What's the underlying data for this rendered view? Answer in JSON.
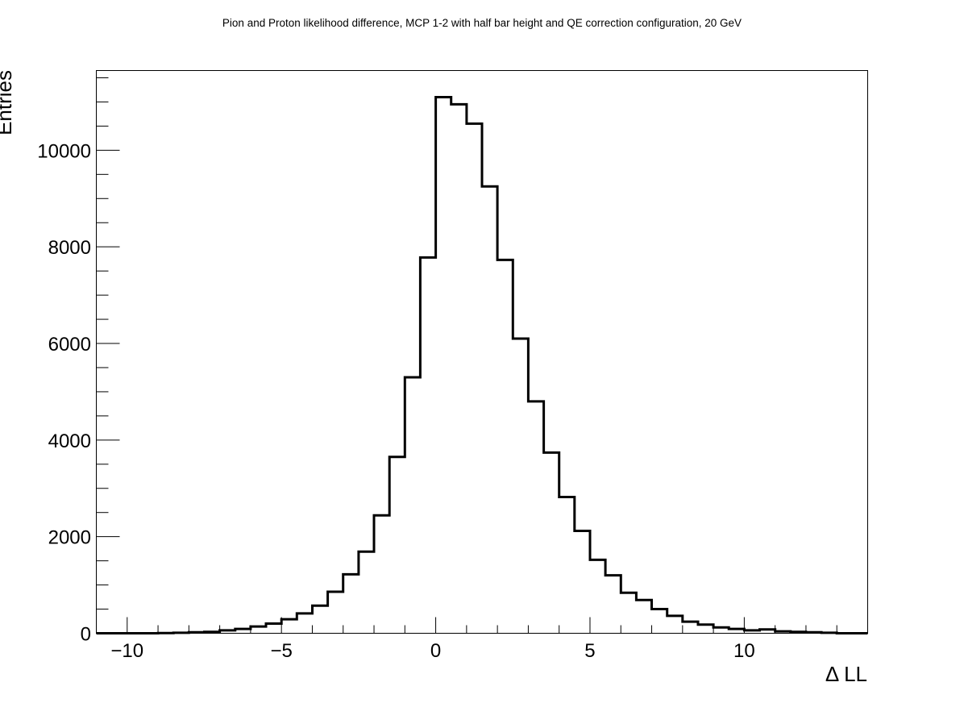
{
  "chart_data": {
    "type": "histogram",
    "title": "Pion and Proton likelihood difference, MCP 1-2 with half bar height and QE correction configuration, 20 GeV",
    "xlabel": "Δ LL",
    "ylabel": "Entries",
    "xlim": [
      -11,
      14
    ],
    "ylim": [
      0,
      11650
    ],
    "x_ticks": [
      {
        "value": -10,
        "label": "−10"
      },
      {
        "value": -5,
        "label": "−5"
      },
      {
        "value": 0,
        "label": "0"
      },
      {
        "value": 5,
        "label": "5"
      },
      {
        "value": 10,
        "label": "10"
      }
    ],
    "y_ticks": [
      {
        "value": 0,
        "label": "0"
      },
      {
        "value": 2000,
        "label": "2000"
      },
      {
        "value": 4000,
        "label": "4000"
      },
      {
        "value": 6000,
        "label": "6000"
      },
      {
        "value": 8000,
        "label": "8000"
      },
      {
        "value": 10000,
        "label": "10000"
      }
    ],
    "bin_edges": [
      -11,
      -10.5,
      -10,
      -9.5,
      -9,
      -8.5,
      -8,
      -7.5,
      -7,
      -6.5,
      -6,
      -5.5,
      -5,
      -4.5,
      -4,
      -3.5,
      -3,
      -2.5,
      -2,
      -1.5,
      -1,
      -0.5,
      0,
      0.5,
      1,
      1.5,
      2,
      2.5,
      3,
      3.5,
      4,
      4.5,
      5,
      5.5,
      6,
      6.5,
      7,
      7.5,
      8,
      8.5,
      9,
      9.5,
      10,
      10.5,
      11,
      11.5,
      12,
      12.5,
      13,
      13.5,
      14
    ],
    "values": [
      0,
      0,
      0,
      0,
      5,
      10,
      20,
      30,
      60,
      90,
      140,
      200,
      290,
      410,
      570,
      860,
      1220,
      1690,
      2440,
      3650,
      5300,
      7780,
      11100,
      10950,
      10550,
      9250,
      7730,
      6100,
      4800,
      3740,
      2820,
      2120,
      1520,
      1200,
      840,
      690,
      500,
      360,
      240,
      180,
      120,
      90,
      60,
      80,
      40,
      30,
      20,
      10,
      0,
      0
    ],
    "grid": false,
    "legend": false
  }
}
